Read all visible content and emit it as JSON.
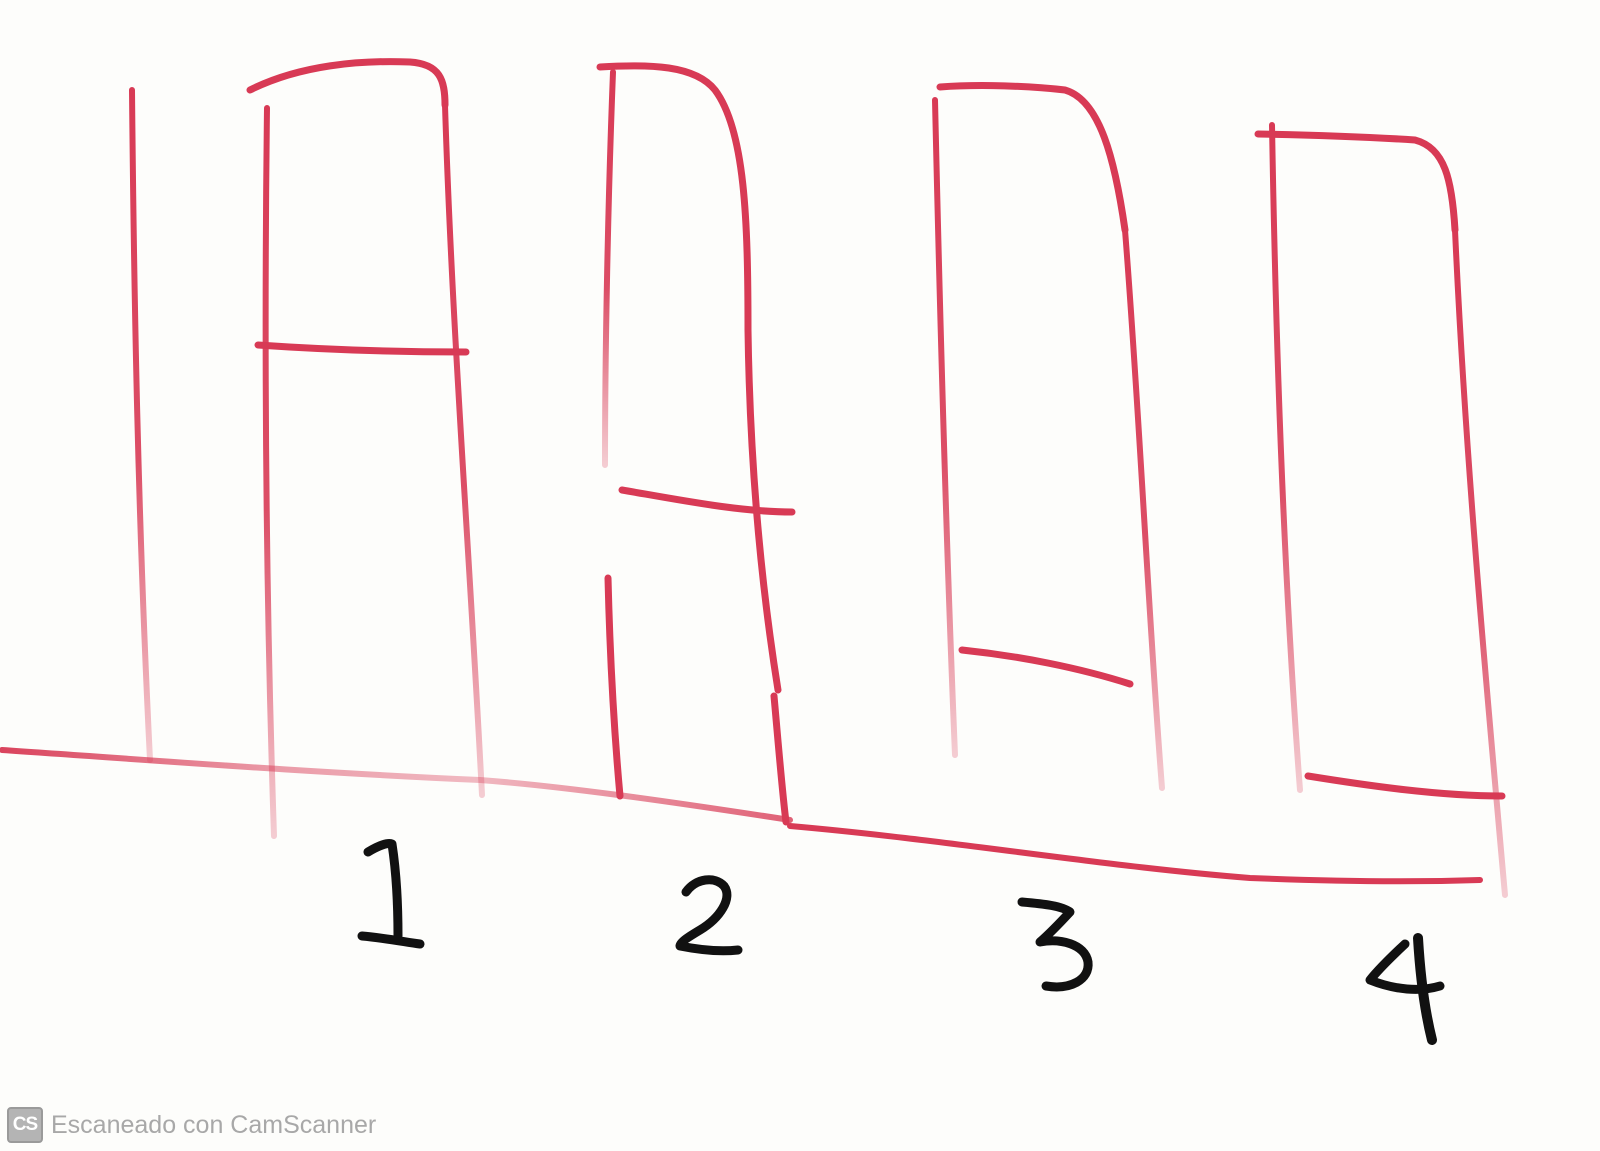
{
  "stage_labels": [
    "1",
    "2",
    "3",
    "4"
  ],
  "watermark": {
    "logo_text": "CS",
    "text": "Escaneado con CamScanner"
  },
  "colors": {
    "paper": "#fdfdfb",
    "red_ink": "#d83a55",
    "black_ink": "#111111",
    "watermark": "#a8a8a8"
  }
}
